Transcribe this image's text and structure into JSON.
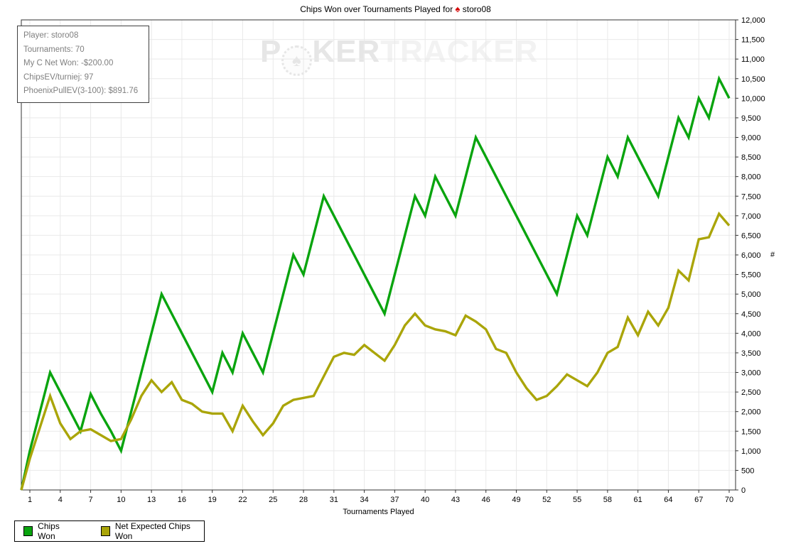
{
  "title": {
    "prefix": "Chips Won over Tournaments Played for",
    "spade": "♠",
    "player": "storo08"
  },
  "infobox": {
    "lines": [
      "Player: storo08",
      "Tournaments: 70",
      "My C Net Won: -$200.00",
      "ChipsEV/turniej: 97",
      "PhoenixPullEV(3-100): $891.76"
    ]
  },
  "watermark": {
    "p": "P",
    "chip_symbol": "♠",
    "ker": "KER",
    "tracker": "TRACKER"
  },
  "colors": {
    "grid": "#e9e9e9",
    "axis": "#333333",
    "info_text": "#7f7f7f",
    "watermark_bold": "#e6e6e6",
    "watermark_light": "#f2f2f2",
    "title_spade": "#d40000"
  },
  "chart_data": {
    "type": "line",
    "title": "Chips Won over Tournaments Played for storo08",
    "xlabel": "Tournaments Played",
    "ylabel": "#",
    "grid": true,
    "legend_position": "bottom-left",
    "xlim": [
      0,
      70
    ],
    "ylim": [
      0,
      12000
    ],
    "y_tick_step": 500,
    "x_ticks": [
      1,
      4,
      7,
      10,
      13,
      16,
      19,
      22,
      25,
      28,
      31,
      34,
      37,
      40,
      43,
      46,
      49,
      52,
      55,
      58,
      61,
      64,
      67,
      70
    ],
    "x": [
      0,
      1,
      2,
      3,
      4,
      5,
      6,
      7,
      8,
      9,
      10,
      11,
      12,
      13,
      14,
      15,
      16,
      17,
      18,
      19,
      20,
      21,
      22,
      23,
      24,
      25,
      26,
      27,
      28,
      29,
      30,
      31,
      32,
      33,
      34,
      35,
      36,
      37,
      38,
      39,
      40,
      41,
      42,
      43,
      44,
      45,
      46,
      47,
      48,
      49,
      50,
      51,
      52,
      53,
      54,
      55,
      56,
      57,
      58,
      59,
      60,
      61,
      62,
      63,
      64,
      65,
      66,
      67,
      68,
      69,
      70
    ],
    "series": [
      {
        "name": "Chips Won",
        "color": "#09a40e",
        "values": [
          0,
          1000,
          2000,
          3000,
          2500,
          2000,
          1500,
          2450,
          1950,
          1500,
          1000,
          2000,
          3000,
          4000,
          5000,
          4500,
          4000,
          3500,
          3000,
          2500,
          3500,
          3000,
          4000,
          3500,
          3000,
          4000,
          5000,
          6000,
          5500,
          6500,
          7500,
          7000,
          6500,
          6000,
          5500,
          5000,
          4500,
          5500,
          6500,
          7500,
          7000,
          8000,
          7500,
          7000,
          8000,
          9000,
          8500,
          8000,
          7500,
          7000,
          6500,
          6000,
          5500,
          5000,
          6000,
          7000,
          6500,
          7500,
          8500,
          8000,
          9000,
          8500,
          8000,
          7500,
          8500,
          9500,
          9000,
          10000,
          9500,
          10500,
          10000
        ]
      },
      {
        "name": "Net Expected Chips Won",
        "color": "#aaa509",
        "values": [
          0,
          800,
          1600,
          2400,
          1700,
          1300,
          1500,
          1550,
          1400,
          1250,
          1300,
          1800,
          2400,
          2800,
          2500,
          2750,
          2300,
          2200,
          2000,
          1950,
          1950,
          1500,
          2150,
          1750,
          1400,
          1700,
          2150,
          2300,
          2350,
          2400,
          2900,
          3400,
          3500,
          3450,
          3700,
          3500,
          3300,
          3700,
          4200,
          4500,
          4200,
          4100,
          4050,
          3950,
          4450,
          4300,
          4100,
          3600,
          3500,
          3000,
          2600,
          2300,
          2400,
          2650,
          2950,
          2800,
          2650,
          3000,
          3500,
          3650,
          4400,
          3950,
          4550,
          4200,
          4650,
          5600,
          5350,
          6400,
          6450,
          7050,
          6750
        ]
      }
    ]
  }
}
